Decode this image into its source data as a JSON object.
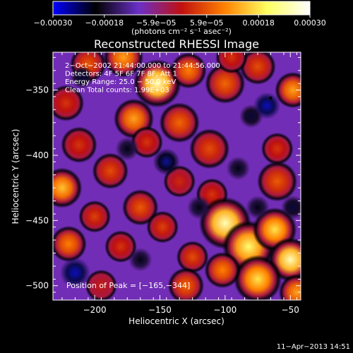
{
  "chart_data": {
    "type": "heatmap",
    "title": "Reconstructed RHESSI Image",
    "xlabel": "Heliocentric X (arcsec)",
    "ylabel": "Heliocentric Y (arcsec)",
    "xlim": [
      -232,
      -42
    ],
    "ylim": [
      -511,
      -321
    ],
    "xticks": [
      -200,
      -150,
      -100,
      -50
    ],
    "yticks": [
      -350,
      -400,
      -450,
      -500
    ],
    "xtick_labels": [
      "−200",
      "−150",
      "−100",
      "−50"
    ],
    "ytick_labels": [
      "−350",
      "−400",
      "−450",
      "−500"
    ],
    "colorbar": {
      "range": [
        -0.0003,
        0.0003
      ],
      "ticks": [
        -0.0003,
        -0.00018,
        -5.9e-05,
        5.9e-05,
        0.00018,
        0.0003
      ],
      "tick_labels": [
        "−0.00030",
        "−0.00018",
        "−5.9e−05",
        "5.9e−05",
        "0.00018",
        "0.00030"
      ],
      "unit_label": "(photons cm⁻² s⁻¹ asec⁻²)",
      "colors": [
        "#0000ff",
        "#000000",
        "#6a30c8",
        "#c01010",
        "#ff8000",
        "#ffff60",
        "#ffffff"
      ]
    },
    "annotations": [
      "2−Oct−2002 21:44:00.000 to 21:44:56.000",
      "Detectors: 4F 5F 6F 7F 8F, Att 1",
      "Energy Range: 25.0 − 50.0 keV",
      "Clean     Total counts: 1.99E+03"
    ],
    "peak_label": "Position of Peak = [−165,−344]",
    "peak": [
      -165,
      -344
    ],
    "grid": false,
    "blobs": [
      {
        "x": -178,
        "y": -325,
        "r": 10,
        "v": 0.0002
      },
      {
        "x": -205,
        "y": -330,
        "r": 9,
        "v": 0.00015
      },
      {
        "x": -152,
        "y": -345,
        "r": 12,
        "v": 0.00028
      },
      {
        "x": -128,
        "y": -335,
        "r": 9,
        "v": 0.00018
      },
      {
        "x": -100,
        "y": -345,
        "r": 10,
        "v": 0.00016
      },
      {
        "x": -75,
        "y": -332,
        "r": 9,
        "v": 0.00014
      },
      {
        "x": -48,
        "y": -350,
        "r": 9,
        "v": 0.0002
      },
      {
        "x": -222,
        "y": -360,
        "r": 9,
        "v": 0.00012
      },
      {
        "x": -170,
        "y": -372,
        "r": 10,
        "v": 0.0002
      },
      {
        "x": -135,
        "y": -375,
        "r": 10,
        "v": 0.00016
      },
      {
        "x": -160,
        "y": -390,
        "r": 8,
        "v": 0.00012
      },
      {
        "x": -212,
        "y": -392,
        "r": 9,
        "v": 0.00012
      },
      {
        "x": -112,
        "y": -395,
        "r": 10,
        "v": 0.00014
      },
      {
        "x": -188,
        "y": -412,
        "r": 9,
        "v": 0.00014
      },
      {
        "x": -225,
        "y": -425,
        "r": 10,
        "v": 0.00022
      },
      {
        "x": -135,
        "y": -420,
        "r": 8,
        "v": 0.00011
      },
      {
        "x": -110,
        "y": -430,
        "r": 8,
        "v": 0.00012
      },
      {
        "x": -60,
        "y": -420,
        "r": 10,
        "v": 0.00015
      },
      {
        "x": -200,
        "y": -447,
        "r": 8,
        "v": 0.00013
      },
      {
        "x": -165,
        "y": -440,
        "r": 9,
        "v": 0.00015
      },
      {
        "x": -148,
        "y": -455,
        "r": 8,
        "v": 0.00013
      },
      {
        "x": -220,
        "y": -468,
        "r": 9,
        "v": 0.00018
      },
      {
        "x": -180,
        "y": -470,
        "r": 8,
        "v": 0.00012
      },
      {
        "x": -125,
        "y": -478,
        "r": 8,
        "v": 0.00014
      },
      {
        "x": -130,
        "y": -500,
        "r": 9,
        "v": 0.00016
      },
      {
        "x": -100,
        "y": -452,
        "r": 13,
        "v": 0.00028
      },
      {
        "x": -82,
        "y": -470,
        "r": 13,
        "v": 0.00026
      },
      {
        "x": -62,
        "y": -457,
        "r": 11,
        "v": 0.00024
      },
      {
        "x": -50,
        "y": -480,
        "r": 11,
        "v": 0.00028
      },
      {
        "x": -75,
        "y": -495,
        "r": 12,
        "v": 0.00024
      },
      {
        "x": -102,
        "y": -488,
        "r": 9,
        "v": 0.00018
      },
      {
        "x": -45,
        "y": -505,
        "r": 9,
        "v": 0.0002
      },
      {
        "x": -195,
        "y": -500,
        "r": 8,
        "v": 0.0001
      },
      {
        "x": -95,
        "y": -325,
        "r": 8,
        "v": 0.00012
      },
      {
        "x": -60,
        "y": -395,
        "r": 8,
        "v": 0.00012
      },
      {
        "x": -80,
        "y": -370,
        "r": 7,
        "v": -0.00012
      },
      {
        "x": -68,
        "y": -362,
        "r": 8,
        "v": -0.00022
      },
      {
        "x": -145,
        "y": -405,
        "r": 8,
        "v": -0.00018
      },
      {
        "x": -215,
        "y": -490,
        "r": 9,
        "v": -0.00022
      },
      {
        "x": -210,
        "y": -340,
        "r": 7,
        "v": -0.00012
      },
      {
        "x": -175,
        "y": -395,
        "r": 7,
        "v": -0.0001
      },
      {
        "x": -120,
        "y": -440,
        "r": 7,
        "v": -0.0001
      },
      {
        "x": -90,
        "y": -410,
        "r": 7,
        "v": -0.0001
      },
      {
        "x": -165,
        "y": -480,
        "r": 7,
        "v": -0.0001
      },
      {
        "x": -48,
        "y": -440,
        "r": 7,
        "v": -0.00012
      },
      {
        "x": -75,
        "y": -440,
        "r": 7,
        "v": -0.0001
      }
    ]
  },
  "timestamp": "11−Apr−2013 14:51"
}
